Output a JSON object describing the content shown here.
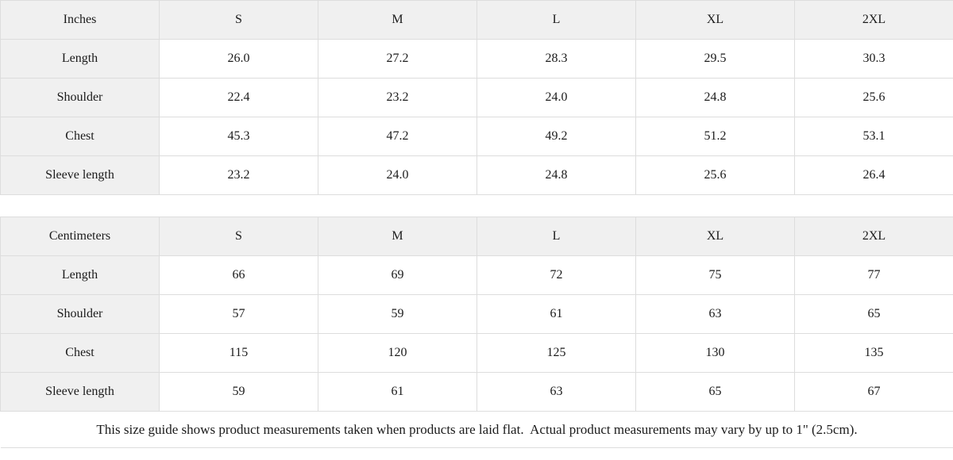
{
  "colors": {
    "header_background": "#f0f0f0",
    "border": "#dddddd",
    "text": "#1b1b1b",
    "page_background": "#ffffff"
  },
  "chart_data": [
    {
      "type": "table",
      "title": "Inches",
      "columns": [
        "Inches",
        "S",
        "M",
        "L",
        "XL",
        "2XL"
      ],
      "rows": [
        [
          "Length",
          "26.0",
          "27.2",
          "28.3",
          "29.5",
          "30.3"
        ],
        [
          "Shoulder",
          "22.4",
          "23.2",
          "24.0",
          "24.8",
          "25.6"
        ],
        [
          "Chest",
          "45.3",
          "47.2",
          "49.2",
          "51.2",
          "53.1"
        ],
        [
          "Sleeve length",
          "23.2",
          "24.0",
          "24.8",
          "25.6",
          "26.4"
        ]
      ]
    },
    {
      "type": "table",
      "title": "Centimeters",
      "columns": [
        "Centimeters",
        "S",
        "M",
        "L",
        "XL",
        "2XL"
      ],
      "rows": [
        [
          "Length",
          "66",
          "69",
          "72",
          "75",
          "77"
        ],
        [
          "Shoulder",
          "57",
          "59",
          "61",
          "63",
          "65"
        ],
        [
          "Chest",
          "115",
          "120",
          "125",
          "130",
          "135"
        ],
        [
          "Sleeve length",
          "59",
          "61",
          "63",
          "65",
          "67"
        ]
      ]
    }
  ],
  "footer": {
    "note": "This size guide shows product measurements taken when products are laid flat.  Actual product measurements may vary by up to 1\" (2.5cm)."
  }
}
